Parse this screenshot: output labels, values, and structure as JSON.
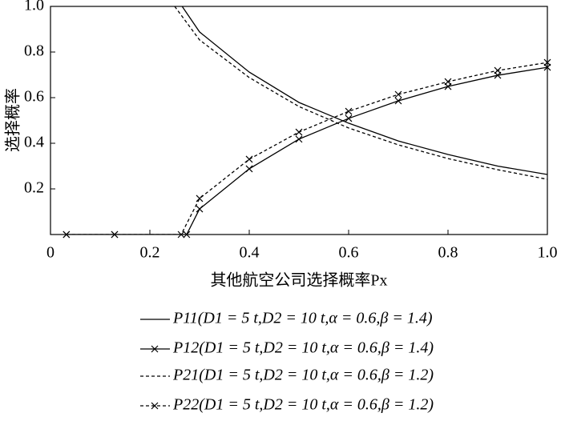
{
  "chart_data": {
    "type": "line",
    "xlabel": "其他航空公司选择概率Px",
    "ylabel": "选择概率",
    "xlim": [
      0,
      1
    ],
    "ylim": [
      0,
      1
    ],
    "xticks": [
      0,
      0.2,
      0.4,
      0.6,
      0.8,
      {
        "value": 1,
        "label": "1.0"
      }
    ],
    "yticks": [
      0.2,
      0.4,
      0.6,
      0.8,
      {
        "value": 1,
        "label": "1.0"
      }
    ],
    "series": [
      {
        "name": "P11(D1 = 5 t,D2 = 10 t,α = 0.6,β = 1.4)",
        "color": "#000000",
        "line_style": "solid",
        "marker": null,
        "x": [
          0.265,
          0.3,
          0.4,
          0.5,
          0.6,
          0.7,
          0.8,
          0.9,
          1.0
        ],
        "values": [
          1.0,
          0.888,
          0.712,
          0.579,
          0.488,
          0.41,
          0.351,
          0.3,
          0.263
        ]
      },
      {
        "name": "P12(D1 = 5 t,D2 = 10 t,α = 0.6,β = 1.4)",
        "color": "#000000",
        "line_style": "solid",
        "marker": "x",
        "x": [
          0.032,
          0.129,
          0.274,
          0.3,
          0.4,
          0.5,
          0.6,
          0.7,
          0.8,
          0.9,
          1.0
        ],
        "values": [
          0,
          0,
          0,
          0.112,
          0.288,
          0.418,
          0.509,
          0.586,
          0.649,
          0.698,
          0.733
        ]
      },
      {
        "name": "P21(D1 = 5 t,D2 = 10 t,α = 0.6,β = 1.2)",
        "color": "#000000",
        "line_style": "dashed",
        "marker": null,
        "x": [
          0.25,
          0.3,
          0.4,
          0.5,
          0.6,
          0.7,
          0.8,
          0.9,
          1.0
        ],
        "values": [
          1.0,
          0.853,
          0.688,
          0.561,
          0.467,
          0.393,
          0.333,
          0.284,
          0.242
        ]
      },
      {
        "name": "P22(D1 = 5 t,D2 = 10 t,α = 0.6,β = 1.2)",
        "color": "#000000",
        "line_style": "dashed",
        "marker": "x",
        "x": [
          0.032,
          0.129,
          0.263,
          0.3,
          0.4,
          0.5,
          0.6,
          0.7,
          0.8,
          0.9,
          1.0
        ],
        "values": [
          0,
          0,
          0,
          0.158,
          0.33,
          0.449,
          0.54,
          0.614,
          0.67,
          0.719,
          0.754
        ]
      }
    ]
  }
}
